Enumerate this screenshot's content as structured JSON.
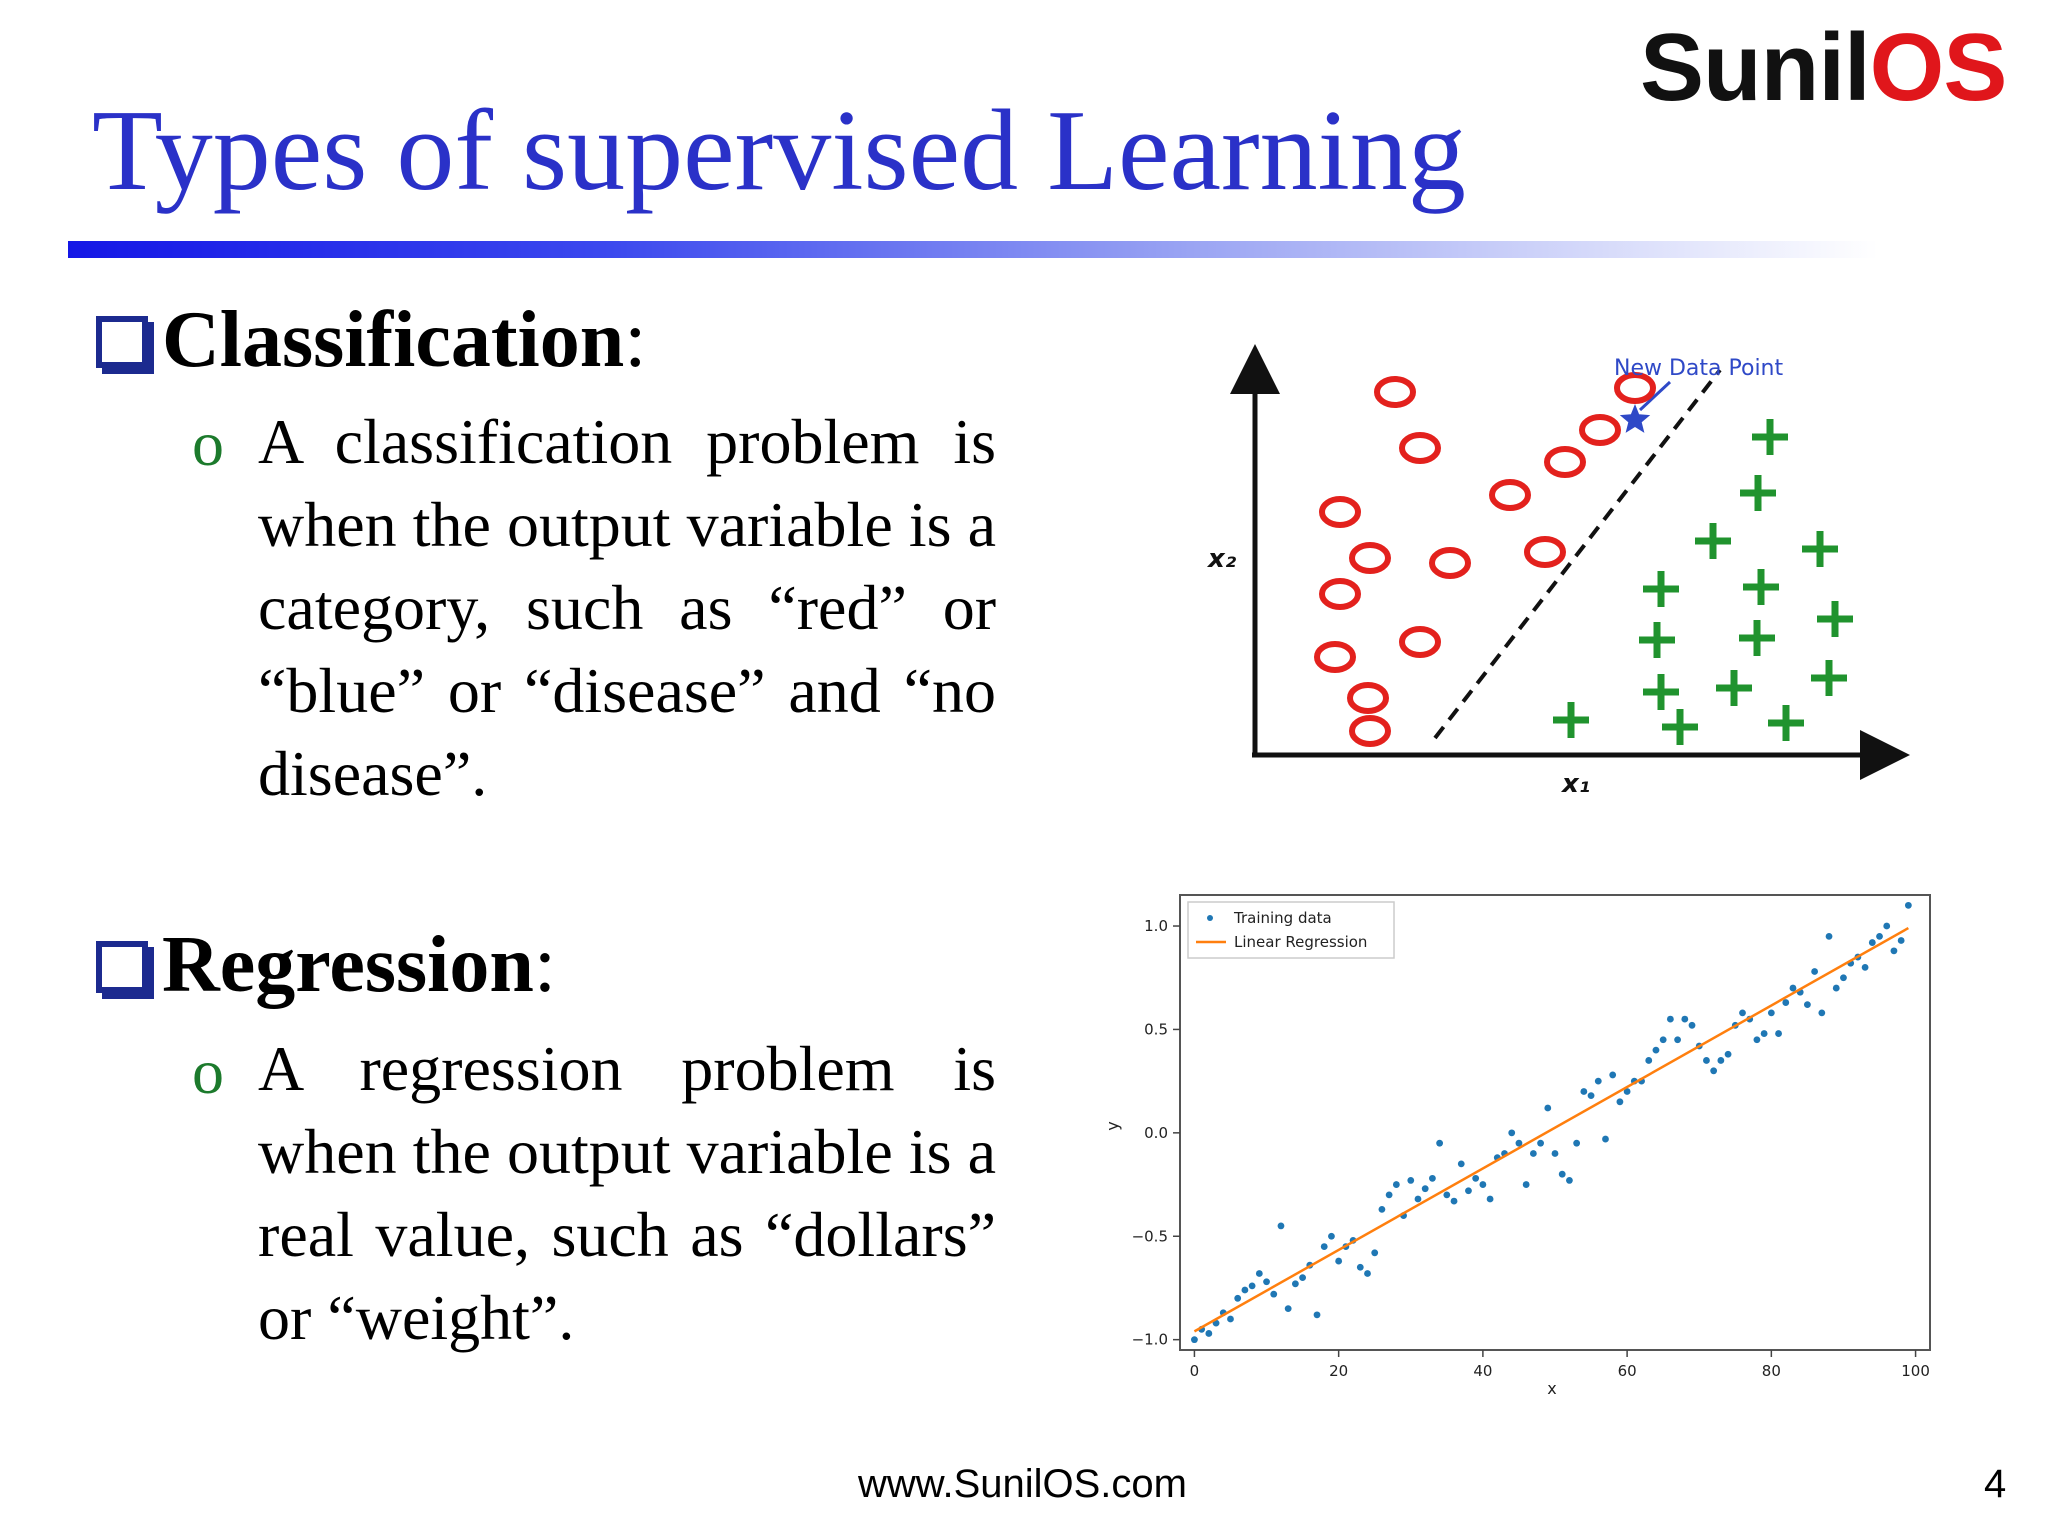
{
  "logo": {
    "part1": "Sunil",
    "part2": "OS"
  },
  "title": "Types of supervised Learning",
  "sections": [
    {
      "heading": "Classification",
      "colon": ":",
      "bullet": "o",
      "text": "A classification problem is when the output variable is a category, such as “red” or “blue” or “disease” and “no disease”."
    },
    {
      "heading": "Regression",
      "colon": ":",
      "bullet": "o",
      "text": "A regression problem is when the output variable is a real value, such as “dollars” or “weight”."
    }
  ],
  "classification_figure": {
    "x_label": "x₁",
    "y_label": "x₂",
    "annotation": "New Data Point",
    "colors": {
      "circle": "#e3211d",
      "plus": "#20932e",
      "star": "#2f49c7",
      "boundary": "#111111"
    }
  },
  "chart_data": {
    "type": "scatter",
    "xlabel": "x",
    "ylabel": "y",
    "xlim": [
      -2,
      102
    ],
    "ylim": [
      -1.05,
      1.15
    ],
    "xticks": [
      0,
      20,
      40,
      60,
      80,
      100
    ],
    "yticks": [
      -1.0,
      -0.5,
      0.0,
      0.5,
      1.0
    ],
    "xtick_labels": [
      "0",
      "20",
      "40",
      "60",
      "80",
      "100"
    ],
    "ytick_labels": [
      "−1.0",
      "−0.5",
      "0.0",
      "0.5",
      "1.0"
    ],
    "legend": {
      "placement": "top-left",
      "entries": [
        "Training data",
        "Linear Regression"
      ]
    },
    "series": [
      {
        "name": "Training data",
        "kind": "scatter",
        "color": "#1f77b4",
        "x": [
          0,
          1,
          2,
          3,
          4,
          5,
          6,
          7,
          8,
          9,
          10,
          11,
          12,
          13,
          14,
          15,
          16,
          17,
          18,
          19,
          20,
          21,
          22,
          23,
          24,
          25,
          26,
          27,
          28,
          29,
          30,
          31,
          32,
          33,
          34,
          35,
          36,
          37,
          38,
          39,
          40,
          41,
          42,
          43,
          44,
          45,
          46,
          47,
          48,
          49,
          50,
          51,
          52,
          53,
          54,
          55,
          56,
          57,
          58,
          59,
          60,
          61,
          62,
          63,
          64,
          65,
          66,
          67,
          68,
          69,
          70,
          71,
          72,
          73,
          74,
          75,
          76,
          77,
          78,
          79,
          80,
          81,
          82,
          83,
          84,
          85,
          86,
          87,
          88,
          89,
          90,
          91,
          92,
          93,
          94,
          95,
          96,
          97,
          98,
          99
        ],
        "y": [
          -1.0,
          -0.95,
          -0.97,
          -0.92,
          -0.87,
          -0.9,
          -0.8,
          -0.76,
          -0.74,
          -0.68,
          -0.72,
          -0.78,
          -0.45,
          -0.85,
          -0.73,
          -0.7,
          -0.64,
          -0.88,
          -0.55,
          -0.5,
          -0.62,
          -0.55,
          -0.52,
          -0.65,
          -0.68,
          -0.58,
          -0.37,
          -0.3,
          -0.25,
          -0.4,
          -0.23,
          -0.32,
          -0.27,
          -0.22,
          -0.05,
          -0.3,
          -0.33,
          -0.15,
          -0.28,
          -0.22,
          -0.25,
          -0.32,
          -0.12,
          -0.1,
          0.0,
          -0.05,
          -0.25,
          -0.1,
          -0.05,
          0.12,
          -0.1,
          -0.2,
          -0.23,
          -0.05,
          0.2,
          0.18,
          0.25,
          -0.03,
          0.28,
          0.15,
          0.2,
          0.25,
          0.25,
          0.35,
          0.4,
          0.45,
          0.55,
          0.45,
          0.55,
          0.52,
          0.42,
          0.35,
          0.3,
          0.35,
          0.38,
          0.52,
          0.58,
          0.55,
          0.45,
          0.48,
          0.58,
          0.48,
          0.63,
          0.7,
          0.68,
          0.62,
          0.78,
          0.58,
          0.95,
          0.7,
          0.75,
          0.82,
          0.85,
          0.8,
          0.92,
          0.95,
          1.0,
          0.88,
          0.93,
          1.1
        ]
      },
      {
        "name": "Linear Regression",
        "kind": "line",
        "color": "#ff7f0e",
        "x": [
          0,
          99
        ],
        "y": [
          -0.96,
          0.99
        ]
      }
    ]
  },
  "footer": {
    "url": "www.SunilOS.com",
    "page_number": "4"
  }
}
